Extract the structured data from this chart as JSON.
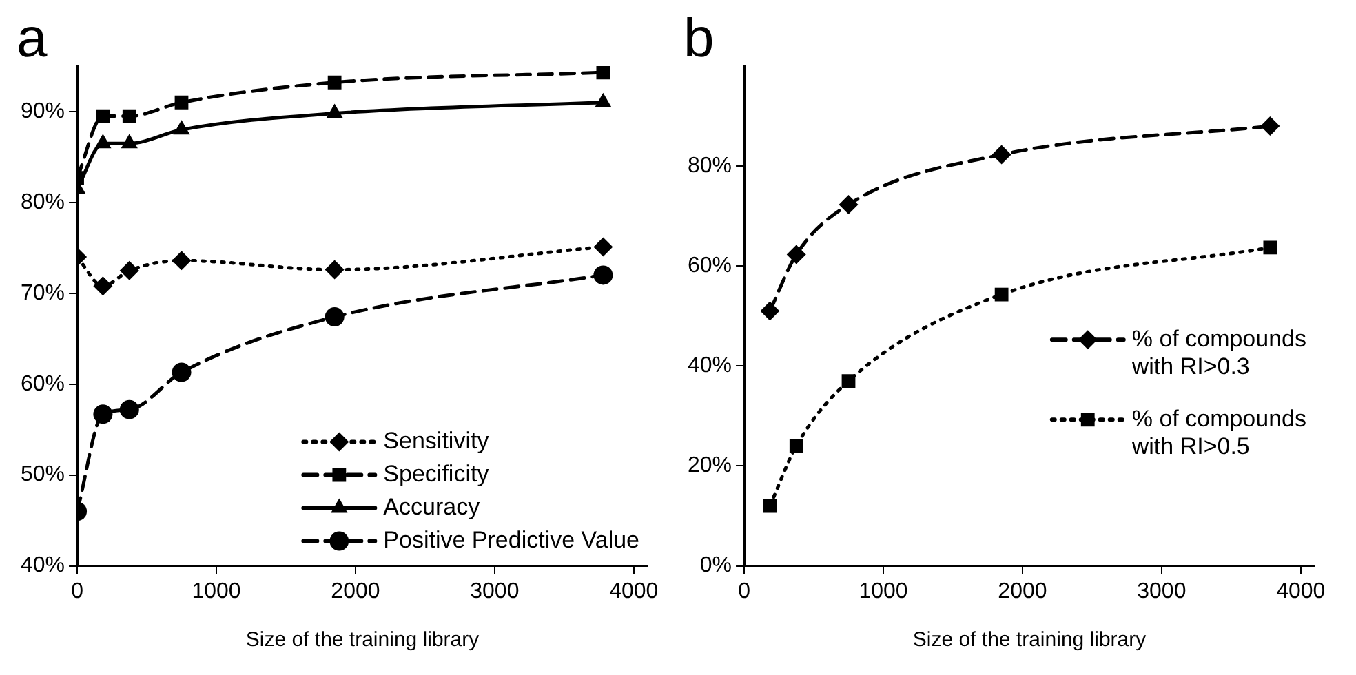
{
  "chart_data": [
    {
      "type": "line",
      "title": "a",
      "xlabel": "Size of the training library",
      "xlim": [
        0,
        4100
      ],
      "xticks": [
        0,
        1000,
        2000,
        3000,
        4000
      ],
      "ylim": [
        40,
        95
      ],
      "yticks": [
        {
          "value": 40,
          "label": "40%"
        },
        {
          "value": 50,
          "label": "50%"
        },
        {
          "value": 60,
          "label": "60%"
        },
        {
          "value": 70,
          "label": "70%"
        },
        {
          "value": 80,
          "label": "80%"
        },
        {
          "value": 90,
          "label": "90%"
        }
      ],
      "grid": false,
      "legend": "bottom right",
      "x": [
        0,
        185,
        375,
        750,
        1850,
        3780
      ],
      "series": [
        {
          "name": "Sensitivity",
          "color": "#000000",
          "marker": "diamond",
          "line_style": "dotted",
          "values": [
            74,
            70.8,
            72.5,
            73.6,
            72.6,
            75.1
          ]
        },
        {
          "name": "Specificity",
          "color": "#000000",
          "marker": "square",
          "line_style": "dashed",
          "values": [
            82.7,
            89.5,
            89.5,
            91,
            93.2,
            94.3
          ]
        },
        {
          "name": "Accuracy",
          "color": "#000000",
          "marker": "triangle",
          "line_style": "solid",
          "values": [
            81.5,
            86.5,
            86.5,
            88,
            89.8,
            91
          ]
        },
        {
          "name": "Positive Predictive Value",
          "color": "#000000",
          "marker": "circle",
          "line_style": "dashed",
          "values": [
            46,
            56.7,
            57.2,
            61.3,
            67.4,
            72
          ]
        }
      ]
    },
    {
      "type": "line",
      "title": "b",
      "xlabel": "Size of the training library",
      "xlim": [
        0,
        4100
      ],
      "xticks": [
        0,
        1000,
        2000,
        3000,
        4000
      ],
      "ylim": [
        0,
        100
      ],
      "yticks": [
        {
          "value": 0,
          "label": "0%"
        },
        {
          "value": 20,
          "label": "20%"
        },
        {
          "value": 40,
          "label": "40%"
        },
        {
          "value": 60,
          "label": "60%"
        },
        {
          "value": 80,
          "label": "80%"
        }
      ],
      "grid": false,
      "legend": "right",
      "x": [
        185,
        375,
        750,
        1850,
        3780
      ],
      "series": [
        {
          "name": "% of compounds with RI>0.3",
          "color": "#000000",
          "marker": "diamond",
          "line_style": "dashed",
          "values": [
            51,
            62.3,
            72.3,
            82.3,
            88
          ]
        },
        {
          "name": "% of compounds with RI>0.5",
          "color": "#000000",
          "marker": "square",
          "line_style": "dotted",
          "values": [
            12,
            24,
            37,
            54.3,
            63.7
          ]
        }
      ]
    }
  ]
}
